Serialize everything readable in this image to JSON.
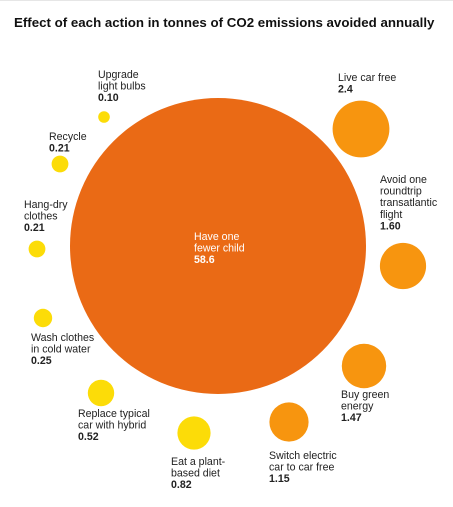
{
  "chart_data": {
    "type": "bubble",
    "title": "Effect of each action in tonnes of CO2 emissions avoided annually",
    "items": [
      {
        "id": "one-fewer-child",
        "lines": [
          "Have one",
          "fewer child"
        ],
        "value": 58.6,
        "value_label": "58.6"
      },
      {
        "id": "live-car-free",
        "lines": [
          "Live car free"
        ],
        "value": 2.4,
        "value_label": "2.4"
      },
      {
        "id": "avoid-flight",
        "lines": [
          "Avoid one",
          "roundtrip",
          "transatlantic",
          "flight"
        ],
        "value": 1.6,
        "value_label": "1.60"
      },
      {
        "id": "green-energy",
        "lines": [
          "Buy green",
          "energy"
        ],
        "value": 1.47,
        "value_label": "1.47"
      },
      {
        "id": "electric-to-car-free",
        "lines": [
          "Switch electric",
          "car to car free"
        ],
        "value": 1.15,
        "value_label": "1.15"
      },
      {
        "id": "plant-based-diet",
        "lines": [
          "Eat a plant-",
          "based diet"
        ],
        "value": 0.82,
        "value_label": "0.82"
      },
      {
        "id": "hybrid-car",
        "lines": [
          "Replace typical",
          "car with hybrid"
        ],
        "value": 0.52,
        "value_label": "0.52"
      },
      {
        "id": "cold-wash",
        "lines": [
          "Wash clothes",
          "in cold water"
        ],
        "value": 0.25,
        "value_label": "0.25"
      },
      {
        "id": "hang-dry",
        "lines": [
          "Hang-dry",
          "clothes"
        ],
        "value": 0.21,
        "value_label": "0.21"
      },
      {
        "id": "recycle",
        "lines": [
          "Recycle"
        ],
        "value": 0.21,
        "value_label": "0.21"
      },
      {
        "id": "light-bulbs",
        "lines": [
          "Upgrade",
          "light bulbs"
        ],
        "value": 0.1,
        "value_label": "0.10"
      }
    ],
    "colors": {
      "big": "#ea6a15",
      "orange": "#f7950f",
      "yellow": "#fcdc08"
    }
  }
}
